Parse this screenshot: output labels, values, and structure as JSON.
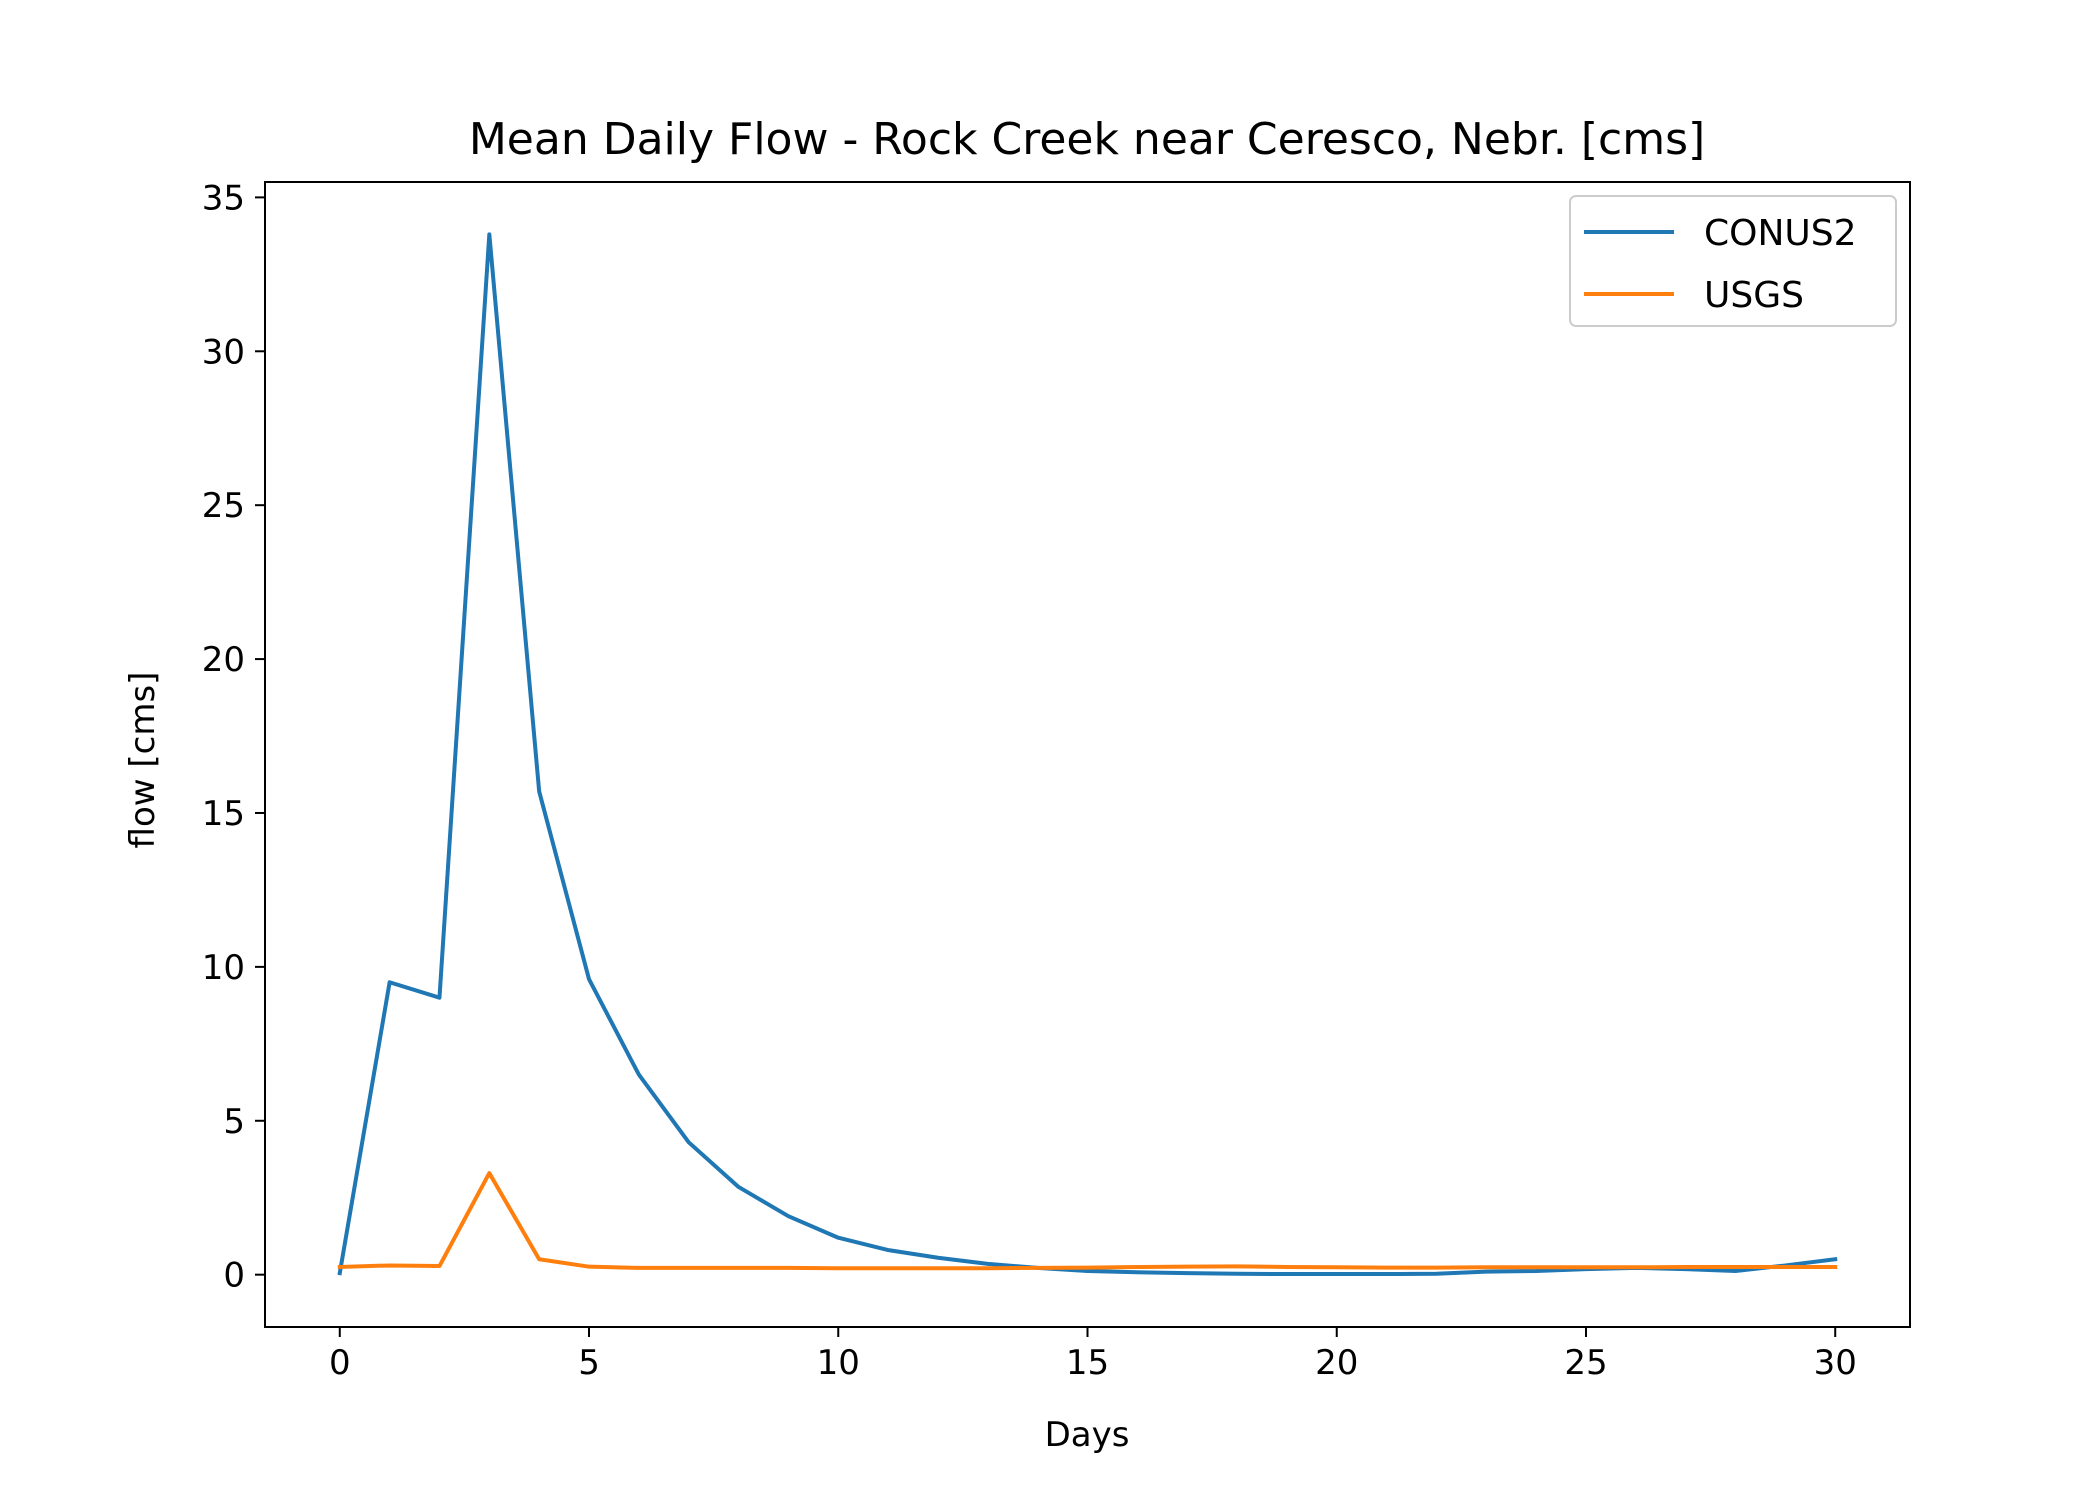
{
  "chart_data": {
    "type": "line",
    "title": "Mean Daily Flow - Rock Creek near Ceresco, Nebr. [cms]",
    "xlabel": "Days",
    "ylabel": "flow [cms]",
    "xlim": [
      -1.5,
      31.5
    ],
    "ylim": [
      -1.7,
      35.5
    ],
    "xticks": [
      0,
      5,
      10,
      15,
      20,
      25,
      30
    ],
    "yticks": [
      0,
      5,
      10,
      15,
      20,
      25,
      30,
      35
    ],
    "grid": false,
    "legend_position": "top-right",
    "x": [
      0,
      1,
      2,
      3,
      4,
      5,
      6,
      7,
      8,
      9,
      10,
      11,
      12,
      13,
      14,
      15,
      16,
      17,
      18,
      19,
      20,
      21,
      22,
      23,
      24,
      25,
      26,
      27,
      28,
      29,
      30
    ],
    "series": [
      {
        "name": "CONUS2",
        "color": "#1f77b4",
        "values": [
          0.05,
          9.5,
          9.0,
          33.8,
          15.7,
          9.6,
          6.5,
          4.3,
          2.85,
          1.9,
          1.2,
          0.8,
          0.55,
          0.35,
          0.22,
          0.12,
          0.08,
          0.05,
          0.03,
          0.02,
          0.02,
          0.02,
          0.03,
          0.1,
          0.12,
          0.18,
          0.22,
          0.18,
          0.12,
          0.3,
          0.5
        ]
      },
      {
        "name": "USGS",
        "color": "#ff7f0e",
        "values": [
          0.25,
          0.3,
          0.28,
          3.3,
          0.5,
          0.26,
          0.22,
          0.22,
          0.22,
          0.22,
          0.21,
          0.21,
          0.21,
          0.21,
          0.22,
          0.23,
          0.25,
          0.26,
          0.27,
          0.25,
          0.24,
          0.23,
          0.23,
          0.24,
          0.24,
          0.24,
          0.24,
          0.25,
          0.25,
          0.25,
          0.25
        ]
      }
    ]
  }
}
